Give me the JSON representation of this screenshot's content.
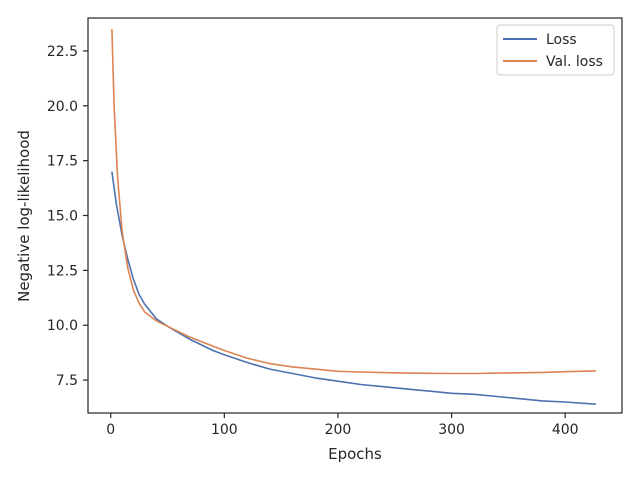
{
  "chart_data": {
    "type": "line",
    "xlabel": "Epochs",
    "ylabel": "Negative log-likelihood",
    "xlim": [
      -20,
      450
    ],
    "ylim": [
      6.0,
      24.0
    ],
    "xticks": [
      0,
      100,
      200,
      300,
      400
    ],
    "xtick_labels": [
      "0",
      "100",
      "200",
      "300",
      "400"
    ],
    "yticks": [
      7.5,
      10.0,
      12.5,
      15.0,
      17.5,
      20.0,
      22.5
    ],
    "ytick_labels": [
      "7.5",
      "10.0",
      "12.5",
      "15.0",
      "17.5",
      "20.0",
      "22.5"
    ],
    "grid": false,
    "legend_position": "top-right",
    "series": [
      {
        "name": "Loss",
        "color": "#4c72b0",
        "x": [
          1,
          5,
          10,
          15,
          20,
          25,
          30,
          40,
          50,
          60,
          70,
          80,
          90,
          100,
          120,
          140,
          160,
          180,
          200,
          220,
          240,
          260,
          280,
          300,
          320,
          340,
          360,
          380,
          400,
          427
        ],
        "y": [
          17.0,
          15.5,
          14.1,
          13.0,
          12.1,
          11.4,
          10.95,
          10.3,
          9.95,
          9.65,
          9.35,
          9.1,
          8.85,
          8.65,
          8.3,
          8.0,
          7.8,
          7.6,
          7.45,
          7.3,
          7.2,
          7.1,
          7.0,
          6.9,
          6.85,
          6.75,
          6.65,
          6.55,
          6.5,
          6.4
        ]
      },
      {
        "name": "Val. loss",
        "color": "#dd8452",
        "x": [
          1,
          3,
          6,
          10,
          15,
          20,
          25,
          30,
          40,
          50,
          60,
          70,
          80,
          90,
          100,
          120,
          140,
          160,
          180,
          200,
          220,
          240,
          260,
          280,
          300,
          320,
          340,
          360,
          380,
          400,
          427
        ],
        "y": [
          23.5,
          20.0,
          16.8,
          14.3,
          12.6,
          11.6,
          11.0,
          10.6,
          10.2,
          9.95,
          9.7,
          9.45,
          9.25,
          9.05,
          8.85,
          8.5,
          8.25,
          8.1,
          8.0,
          7.9,
          7.87,
          7.84,
          7.82,
          7.81,
          7.8,
          7.8,
          7.82,
          7.83,
          7.85,
          7.88,
          7.92
        ]
      }
    ]
  }
}
